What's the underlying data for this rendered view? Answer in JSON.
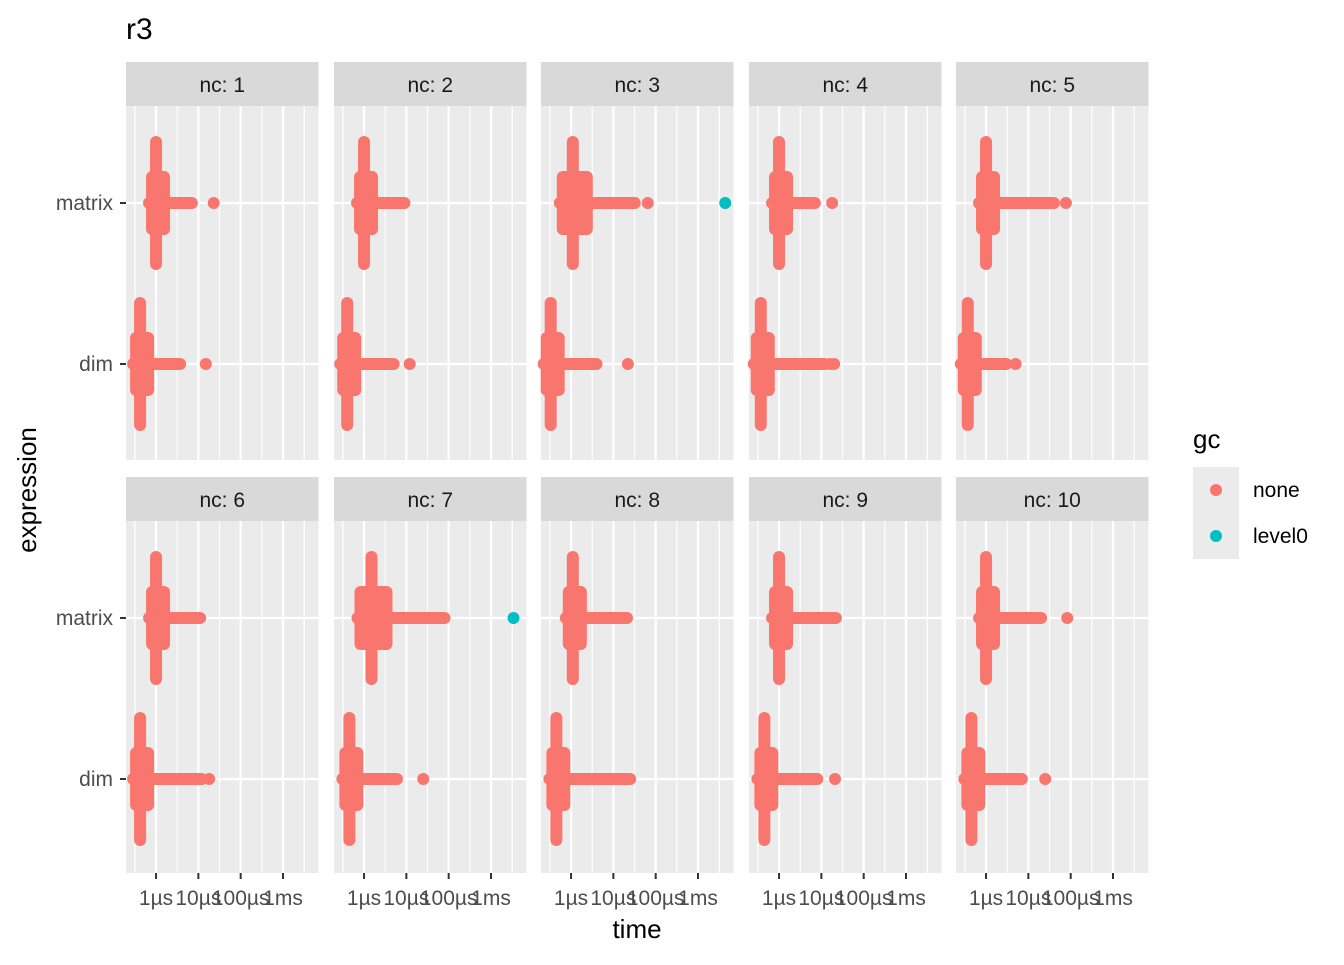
{
  "chart_data": {
    "type": "scatter",
    "title": "r3",
    "xlabel": "time",
    "ylabel": "expression",
    "x_scale": "log10",
    "x_unit": "µs",
    "xlim_us": [
      0.195,
      6900
    ],
    "x_ticks": [
      {
        "value": 1,
        "label": "1µs"
      },
      {
        "value": 10,
        "label": "10µs"
      },
      {
        "value": 100,
        "label": "100µs"
      },
      {
        "value": 1000,
        "label": "1ms"
      }
    ],
    "categories": [
      "matrix",
      "dim"
    ],
    "grid": true,
    "legend": {
      "title": "gc",
      "placement": "right",
      "entries": [
        {
          "label": "none",
          "color": "#F8766D"
        },
        {
          "label": "level0",
          "color": "#00BFC4"
        }
      ]
    },
    "facets": [
      {
        "label": "nc: 1",
        "series": {
          "matrix": {
            "center": 1.0,
            "spread": 1.0,
            "tail": 7,
            "outliers": [
              {
                "x": 23,
                "gc": "none"
              }
            ]
          },
          "dim": {
            "center": 0.42,
            "spread": 1.0,
            "tail": 3.7,
            "outliers": [
              {
                "x": 15,
                "gc": "none"
              }
            ]
          }
        }
      },
      {
        "label": "nc: 2",
        "series": {
          "matrix": {
            "center": 1.0,
            "spread": 1.0,
            "tail": 9,
            "outliers": []
          },
          "dim": {
            "center": 0.4,
            "spread": 1.0,
            "tail": 5,
            "outliers": [
              {
                "x": 12,
                "gc": "none"
              }
            ]
          }
        }
      },
      {
        "label": "nc: 3",
        "series": {
          "matrix": {
            "center": 1.1,
            "spread": 2.2,
            "tail": 32,
            "outliers": [
              {
                "x": 65,
                "gc": "none"
              },
              {
                "x": 4400,
                "gc": "level0"
              }
            ]
          },
          "dim": {
            "center": 0.33,
            "spread": 1.0,
            "tail": 4,
            "outliers": [
              {
                "x": 22,
                "gc": "none"
              }
            ]
          }
        }
      },
      {
        "label": "nc: 4",
        "series": {
          "matrix": {
            "center": 1.0,
            "spread": 1.0,
            "tail": 7,
            "outliers": [
              {
                "x": 18,
                "gc": "none"
              }
            ]
          },
          "dim": {
            "center": 0.37,
            "spread": 1.0,
            "tail": 12,
            "outliers": [
              {
                "x": 16,
                "gc": "none"
              },
              {
                "x": 20,
                "gc": "none"
              }
            ]
          }
        }
      },
      {
        "label": "nc: 5",
        "series": {
          "matrix": {
            "center": 1.0,
            "spread": 1.0,
            "tail": 40,
            "outliers": [
              {
                "x": 77,
                "gc": "none"
              }
            ]
          },
          "dim": {
            "center": 0.37,
            "spread": 1.0,
            "tail": 3,
            "outliers": [
              {
                "x": 5,
                "gc": "none"
              }
            ]
          }
        }
      },
      {
        "label": "nc: 6",
        "series": {
          "matrix": {
            "center": 1.0,
            "spread": 1.0,
            "tail": 11,
            "outliers": []
          },
          "dim": {
            "center": 0.42,
            "spread": 1.0,
            "tail": 12,
            "outliers": [
              {
                "x": 18,
                "gc": "none"
              }
            ]
          }
        }
      },
      {
        "label": "nc: 7",
        "series": {
          "matrix": {
            "center": 1.5,
            "spread": 2.4,
            "tail": 80,
            "outliers": [
              {
                "x": 3400,
                "gc": "level0"
              }
            ]
          },
          "dim": {
            "center": 0.45,
            "spread": 1.0,
            "tail": 6,
            "outliers": [
              {
                "x": 25,
                "gc": "none"
              }
            ]
          }
        }
      },
      {
        "label": "nc: 8",
        "series": {
          "matrix": {
            "center": 1.1,
            "spread": 1.0,
            "tail": 21,
            "outliers": []
          },
          "dim": {
            "center": 0.45,
            "spread": 1.0,
            "tail": 25,
            "outliers": []
          }
        }
      },
      {
        "label": "nc: 9",
        "series": {
          "matrix": {
            "center": 1.0,
            "spread": 1.0,
            "tail": 22,
            "outliers": []
          },
          "dim": {
            "center": 0.45,
            "spread": 1.0,
            "tail": 8,
            "outliers": [
              {
                "x": 21,
                "gc": "none"
              }
            ]
          }
        }
      },
      {
        "label": "nc: 10",
        "series": {
          "matrix": {
            "center": 1.0,
            "spread": 1.0,
            "tail": 20,
            "outliers": [
              {
                "x": 83,
                "gc": "none"
              }
            ]
          },
          "dim": {
            "center": 0.45,
            "spread": 1.0,
            "tail": 7,
            "outliers": [
              {
                "x": 25,
                "gc": "none"
              }
            ]
          }
        }
      }
    ]
  }
}
